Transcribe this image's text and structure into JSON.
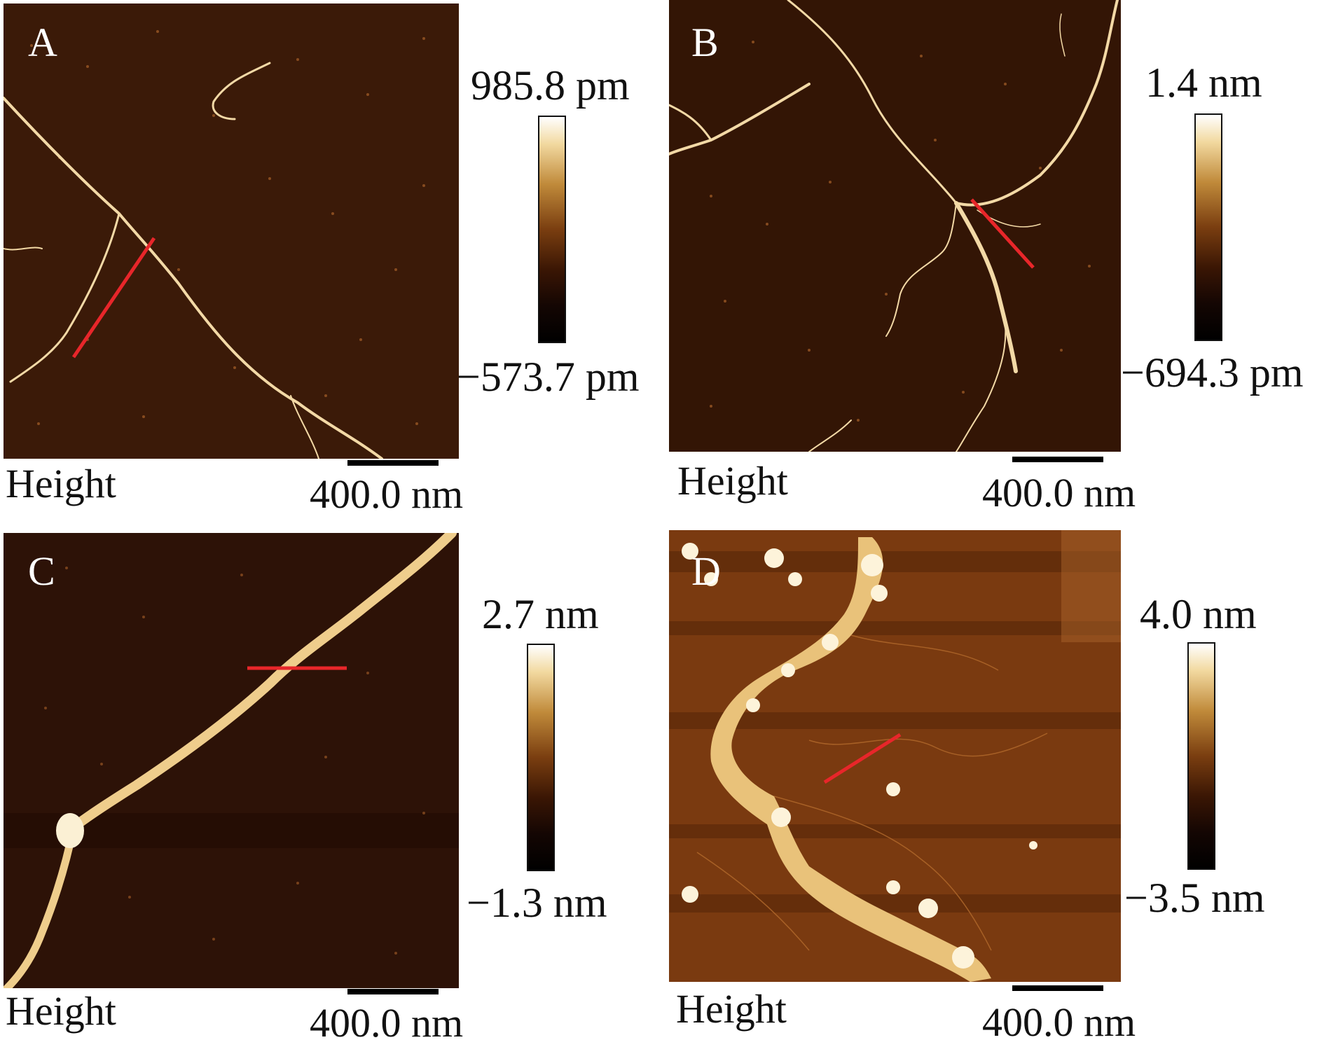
{
  "panels": [
    {
      "letter": "A",
      "colorbar_max": "985.8 pm",
      "colorbar_min": "−573.7 pm",
      "channel": "Height",
      "scale": "400.0 nm",
      "background": "#3b1a08"
    },
    {
      "letter": "B",
      "colorbar_max": "1.4 nm",
      "colorbar_min": "−694.3 pm",
      "channel": "Height",
      "scale": "400.0 nm",
      "background": "#331505"
    },
    {
      "letter": "C",
      "colorbar_max": "2.7 nm",
      "colorbar_min": "−1.3 nm",
      "channel": "Height",
      "scale": "400.0 nm",
      "background": "#2d1207"
    },
    {
      "letter": "D",
      "colorbar_max": "4.0 nm",
      "colorbar_min": "−3.5 nm",
      "channel": "Height",
      "scale": "400.0 nm",
      "background": "#7a3a10"
    }
  ],
  "colors": {
    "fibril": "#f3d9a6",
    "profile_line": "#e8262a",
    "cluster": "#e9c27a"
  }
}
